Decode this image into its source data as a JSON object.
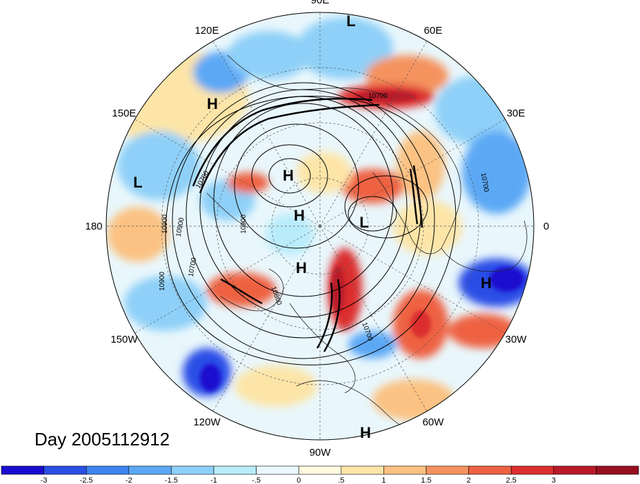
{
  "title": "Day 2005112912",
  "longitude_labels": [
    {
      "text": "90E",
      "lon": 90
    },
    {
      "text": "60E",
      "lon": 60
    },
    {
      "text": "30E",
      "lon": 30
    },
    {
      "text": "0",
      "lon": 0
    },
    {
      "text": "30W",
      "lon": -30
    },
    {
      "text": "60W",
      "lon": -60
    },
    {
      "text": "90W",
      "lon": -90
    },
    {
      "text": "120W",
      "lon": -120
    },
    {
      "text": "150W",
      "lon": -150
    },
    {
      "text": "180",
      "lon": 180
    },
    {
      "text": "150E",
      "lon": 150
    },
    {
      "text": "120E",
      "lon": 120
    }
  ],
  "pressure_centers": [
    {
      "text": "L"
    },
    {
      "text": "H"
    },
    {
      "text": "H"
    },
    {
      "text": "L"
    },
    {
      "text": "H"
    },
    {
      "text": "L"
    },
    {
      "text": "H"
    },
    {
      "text": "H"
    },
    {
      "text": "H"
    }
  ],
  "contour_labels": [
    "10700",
    "10900",
    "10900",
    "10700",
    "10800",
    "10900",
    "10700",
    "10900",
    "10700",
    "10700"
  ],
  "colorbar": {
    "colors": [
      "#1a0ccf",
      "#2b4ee6",
      "#3f84f0",
      "#5ba8f5",
      "#8fd0f8",
      "#b9ecfb",
      "#e8f8fd",
      "#fffbe0",
      "#fde5a8",
      "#fbc283",
      "#f5935f",
      "#ee6242",
      "#dc2e2e",
      "#b81a2a",
      "#96101f"
    ],
    "ticks": [
      "-3",
      "-2.5",
      "-2",
      "-1.5",
      "-1",
      "-.5",
      "0",
      ".5",
      "1",
      "1.5",
      "2",
      "2.5",
      "3"
    ]
  }
}
